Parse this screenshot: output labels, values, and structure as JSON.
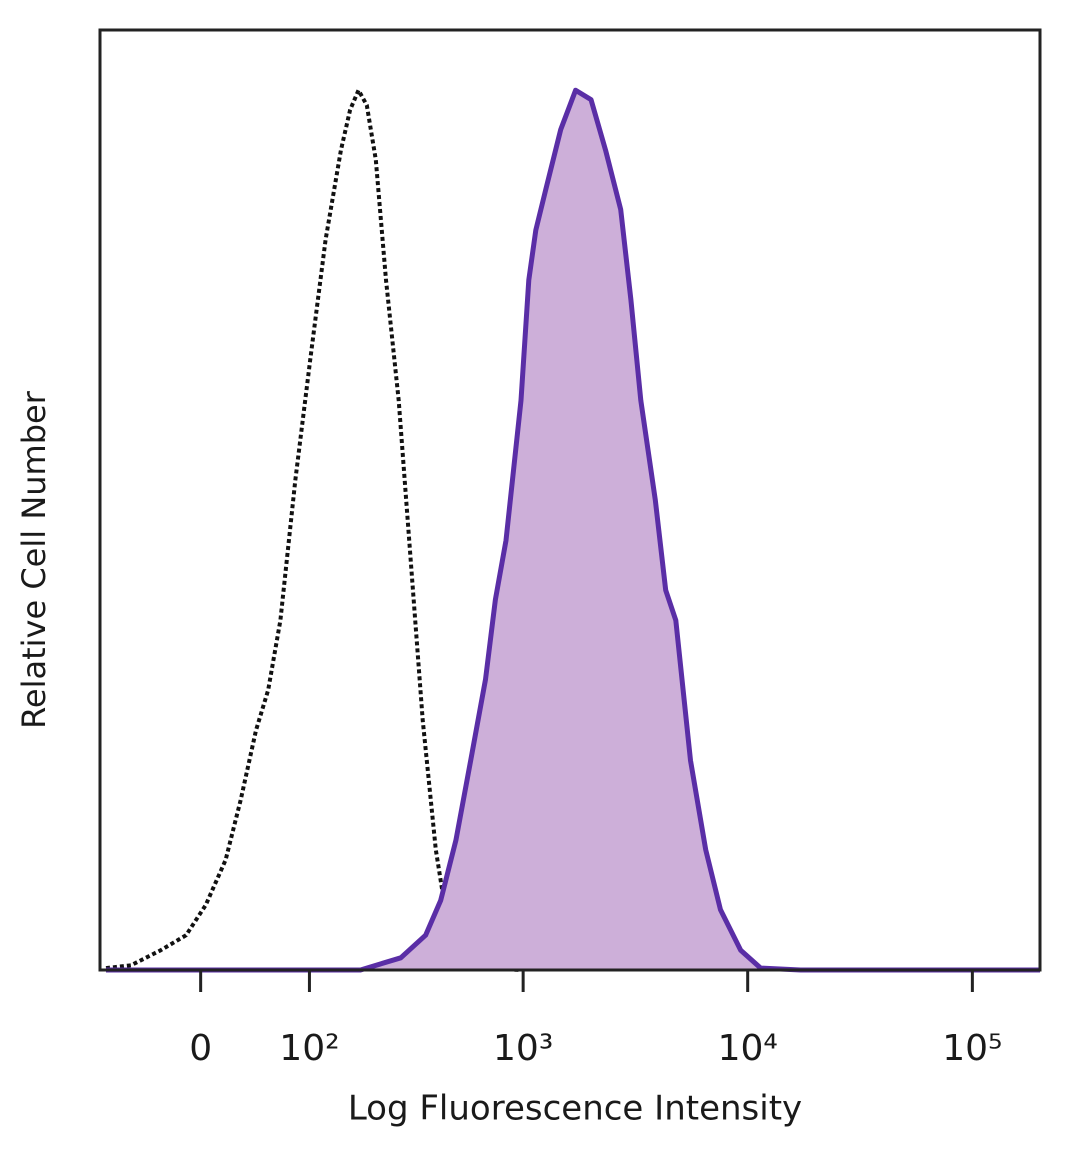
{
  "chart_data": {
    "type": "area",
    "x_label": "Log Fluorescence Intensity",
    "y_label": "Relative Cell Number",
    "xscale": "asinh",
    "xlim": [
      -90,
      200000
    ],
    "ylim": [
      0,
      100
    ],
    "xticks": [
      0,
      {
        "value": 100,
        "label": "10²"
      },
      {
        "value": 1000,
        "label": "10³"
      },
      {
        "value": 10000,
        "label": "10⁴"
      },
      {
        "value": 100000,
        "label": "10⁵"
      }
    ],
    "series": [
      {
        "color": "#111111",
        "style": "dotted",
        "x": [
          -83,
          -57,
          -31,
          -11,
          3.8,
          19,
          31,
          44,
          55,
          67,
          83,
          101,
          122,
          146,
          162,
          178,
          195,
          215,
          240,
          275,
          312,
          354,
          406,
          463,
          526,
          647,
          978
        ],
        "values": [
          0.2,
          0.5,
          2.1,
          3.7,
          6.9,
          11.7,
          18.1,
          25.5,
          29.8,
          37.2,
          52.1,
          64.9,
          77.7,
          87.2,
          91.5,
          93.6,
          92.0,
          86.2,
          73.4,
          60.6,
          43.6,
          26.6,
          12.8,
          4.3,
          1.1,
          0.2,
          0
        ]
      },
      {
        "color": "#5a2ea6",
        "fill": "#cdafd9",
        "style": "solid",
        "x": [
          -83,
          182,
          281,
          365,
          427,
          500,
          583,
          679,
          752,
          838,
          978,
          1060,
          1139,
          1261,
          1470,
          1713,
          2006,
          2330,
          2720,
          3020,
          3344,
          3881,
          4314,
          4785,
          5564,
          6505,
          7570,
          9305,
          11430,
          17200,
          200000
        ],
        "values": [
          0,
          0,
          1.3,
          3.7,
          7.4,
          13.8,
          22.3,
          30.9,
          39.4,
          45.7,
          60.6,
          73.4,
          78.7,
          83.0,
          89.4,
          93.6,
          92.6,
          87.2,
          80.9,
          71.3,
          60.6,
          50.0,
          40.4,
          37.2,
          22.3,
          12.8,
          6.4,
          2.1,
          0.2,
          0,
          0
        ]
      }
    ]
  }
}
